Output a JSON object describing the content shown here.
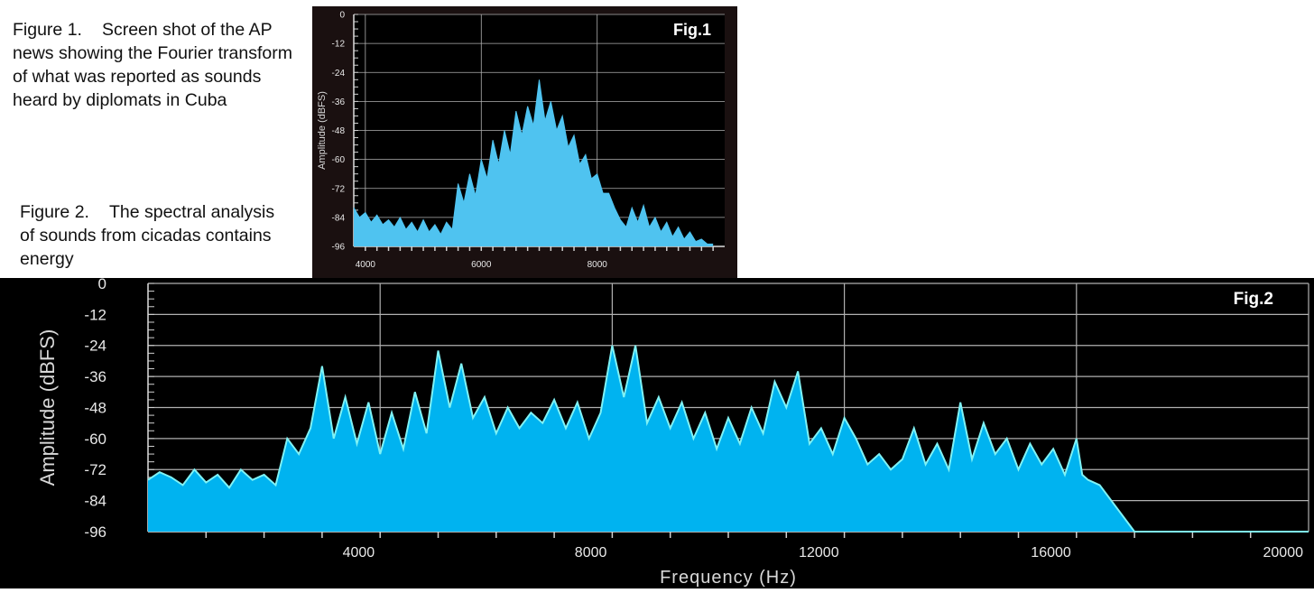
{
  "captions": {
    "fig1": {
      "num": "Figure 1.",
      "text": "Screen shot of the AP news showing the Fourier transform of what was reported as sounds heard by diplomats in Cuba"
    },
    "fig2": {
      "num": "Figure 2.",
      "text": "The spectral analysis of sounds from cicadas contains energy"
    }
  },
  "colors": {
    "fill1": "#4fc3f0",
    "fill2": "#00b3f0",
    "outline2": "#7ff2f5",
    "grid": "#b0b0b0",
    "background": "#000000"
  },
  "chart_data": [
    {
      "type": "area",
      "badge": "Fig.1",
      "ylabel": "Amplitude (dBFS)",
      "xlabel": "",
      "yticks": [
        "0",
        "-12",
        "-24",
        "-36",
        "-48",
        "-60",
        "-72",
        "-84",
        "-96"
      ],
      "xticks": [
        "4000",
        "6000",
        "8000"
      ],
      "xlim": [
        3800,
        10200
      ],
      "ylim": [
        -96,
        0
      ],
      "grid": true,
      "x": [
        3800,
        3900,
        4000,
        4100,
        4200,
        4300,
        4400,
        4500,
        4600,
        4700,
        4800,
        4900,
        5000,
        5100,
        5200,
        5300,
        5400,
        5500,
        5600,
        5700,
        5800,
        5900,
        6000,
        6100,
        6200,
        6300,
        6400,
        6500,
        6600,
        6700,
        6800,
        6900,
        7000,
        7100,
        7200,
        7300,
        7400,
        7500,
        7600,
        7700,
        7800,
        7900,
        8000,
        8100,
        8200,
        8300,
        8400,
        8500,
        8600,
        8700,
        8800,
        8900,
        9000,
        9100,
        9200,
        9300,
        9400,
        9500,
        9600,
        9700,
        9800,
        9900,
        10000
      ],
      "y": [
        -80,
        -84,
        -82,
        -86,
        -83,
        -87,
        -85,
        -88,
        -84,
        -89,
        -86,
        -90,
        -85,
        -90,
        -87,
        -91,
        -86,
        -89,
        -70,
        -78,
        -66,
        -75,
        -60,
        -68,
        -52,
        -62,
        -48,
        -58,
        -40,
        -50,
        -38,
        -46,
        -27,
        -44,
        -36,
        -48,
        -42,
        -55,
        -50,
        -62,
        -58,
        -68,
        -66,
        -74,
        -74,
        -80,
        -85,
        -88,
        -80,
        -86,
        -79,
        -88,
        -84,
        -90,
        -86,
        -92,
        -88,
        -93,
        -90,
        -94,
        -93,
        -95,
        -95
      ]
    },
    {
      "type": "area",
      "badge": "Fig.2",
      "xlabel": "Frequency (Hz)",
      "ylabel": "Amplitude (dBFS)",
      "yticks": [
        "0",
        "-12",
        "-24",
        "-36",
        "-48",
        "-60",
        "-72",
        "-84",
        "-96"
      ],
      "xticks": [
        "4000",
        "8000",
        "12000",
        "16000",
        "20000"
      ],
      "xlim": [
        0,
        20000
      ],
      "ylim": [
        -96,
        0
      ],
      "grid": true,
      "x": [
        0,
        200,
        400,
        600,
        800,
        1000,
        1200,
        1400,
        1600,
        1800,
        2000,
        2200,
        2400,
        2600,
        2800,
        3000,
        3200,
        3400,
        3600,
        3800,
        4000,
        4200,
        4400,
        4600,
        4800,
        5000,
        5200,
        5400,
        5600,
        5800,
        6000,
        6200,
        6400,
        6600,
        6800,
        7000,
        7200,
        7400,
        7600,
        7800,
        8000,
        8200,
        8400,
        8600,
        8800,
        9000,
        9200,
        9400,
        9600,
        9800,
        10000,
        10200,
        10400,
        10600,
        10800,
        11000,
        11200,
        11400,
        11600,
        11800,
        12000,
        12200,
        12400,
        12600,
        12800,
        13000,
        13200,
        13400,
        13600,
        13800,
        14000,
        14200,
        14400,
        14600,
        14800,
        15000,
        15200,
        15400,
        15600,
        15800,
        16000,
        16100,
        16200,
        16400,
        17000,
        18000,
        19000,
        20000
      ],
      "y": [
        -76,
        -73,
        -75,
        -78,
        -72,
        -77,
        -74,
        -79,
        -72,
        -76,
        -74,
        -78,
        -60,
        -66,
        -56,
        -32,
        -60,
        -44,
        -62,
        -46,
        -66,
        -50,
        -64,
        -42,
        -58,
        -26,
        -48,
        -31,
        -52,
        -44,
        -58,
        -48,
        -56,
        -50,
        -54,
        -45,
        -56,
        -46,
        -60,
        -50,
        -24,
        -44,
        -24,
        -54,
        -44,
        -56,
        -46,
        -60,
        -50,
        -64,
        -52,
        -62,
        -48,
        -58,
        -38,
        -48,
        -34,
        -62,
        -56,
        -66,
        -52,
        -60,
        -70,
        -66,
        -72,
        -68,
        -56,
        -70,
        -62,
        -72,
        -46,
        -68,
        -54,
        -66,
        -60,
        -72,
        -62,
        -70,
        -64,
        -74,
        -60,
        -74,
        -76,
        -78,
        -96,
        -96,
        -96,
        -96
      ]
    }
  ]
}
